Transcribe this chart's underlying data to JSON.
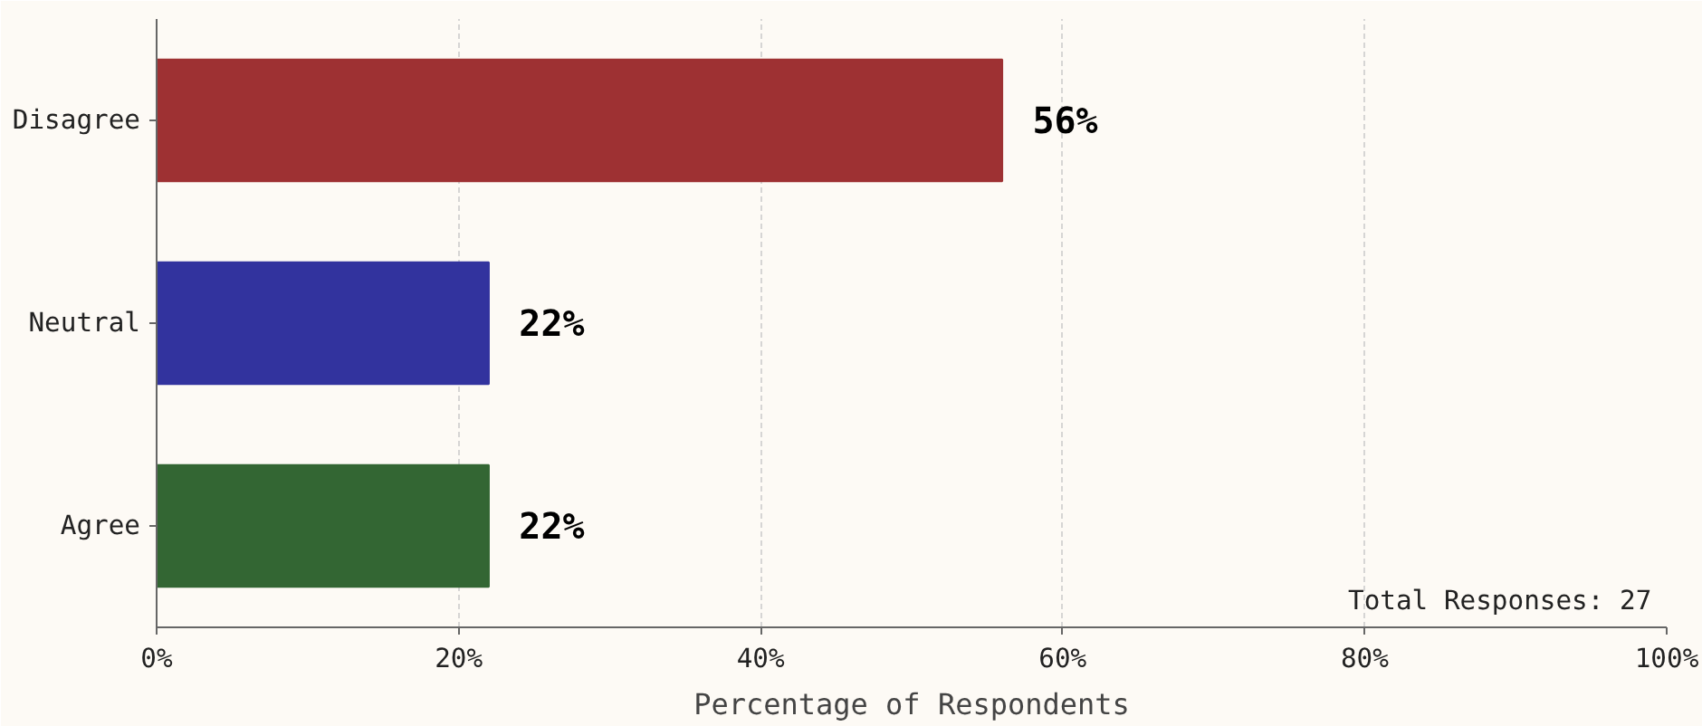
{
  "chart_data": {
    "type": "bar",
    "orientation": "horizontal",
    "xlabel": "Percentage of Respondents",
    "categories": [
      "Disagree",
      "Neutral",
      "Agree"
    ],
    "values": [
      56,
      22,
      22
    ],
    "colors": [
      "#9e3133",
      "#32339e",
      "#336633"
    ],
    "value_labels": [
      "56%",
      "22%",
      "22%"
    ],
    "xlim": [
      0,
      100
    ],
    "xticks": [
      {
        "value": 0,
        "label": "0%"
      },
      {
        "value": 20,
        "label": "20%"
      },
      {
        "value": 40,
        "label": "40%"
      },
      {
        "value": 60,
        "label": "60%"
      },
      {
        "value": 80,
        "label": "80%"
      },
      {
        "value": 100,
        "label": "100%"
      }
    ],
    "grid": "x",
    "annotations": [
      "Total Responses: 27"
    ]
  }
}
